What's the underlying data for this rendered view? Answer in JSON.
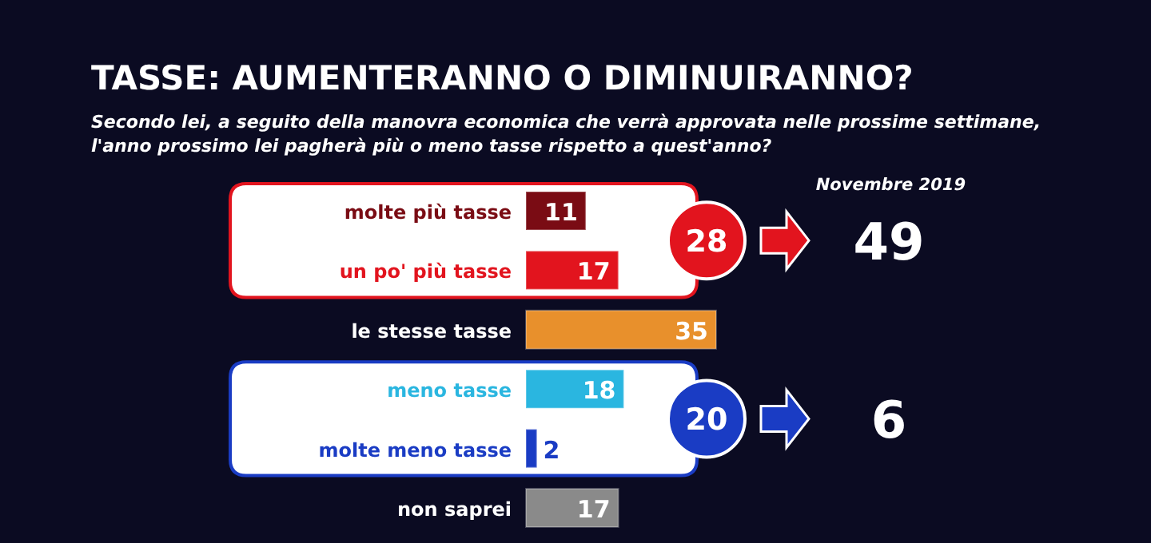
{
  "chart_data": {
    "type": "bar",
    "orientation": "horizontal",
    "title": "TASSE: AUMENTERANNO O DIMINUIRANNO?",
    "subtitle": "Secondo lei, a seguito della manovra economica che verrà approvata nelle prossime settimane, l'anno prossimo lei pagherà più o meno tasse rispetto a quest'anno?",
    "categories": [
      "molte più tasse",
      "un po' più tasse",
      "le stesse tasse",
      "meno tasse",
      "molte meno tasse",
      "non saprei"
    ],
    "values": [
      11,
      17,
      35,
      18,
      2,
      17
    ],
    "colors": [
      "#7a0c14",
      "#e2141e",
      "#e8902c",
      "#2ab6e0",
      "#1a3cc4",
      "#8a8a8a"
    ],
    "data_labels": true,
    "bands": [
      {
        "axis": "y",
        "from": "molte più tasse",
        "to": "un po' più tasse",
        "color": "#e2141e"
      },
      {
        "axis": "y",
        "from": "meno tasse",
        "to": "molte meno tasse",
        "color": "#1a3cc4"
      }
    ],
    "annotations": [
      "Novembre 2019",
      "28",
      "49",
      "20",
      "6"
    ]
  }
}
